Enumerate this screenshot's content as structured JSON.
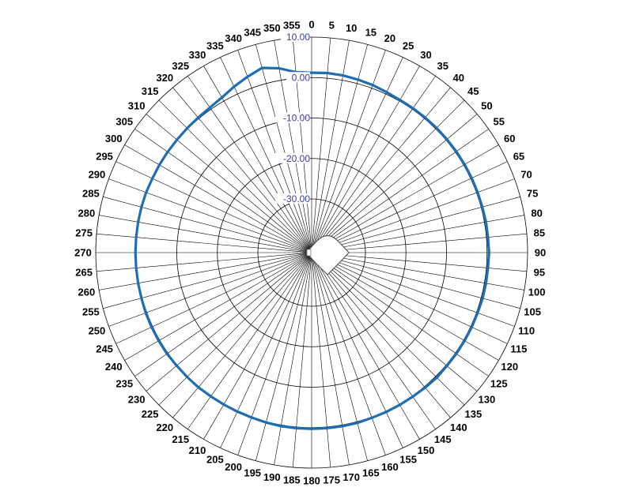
{
  "chart_data": {
    "type": "polar-line",
    "angle_labels": [
      "0",
      "5",
      "10",
      "15",
      "20",
      "25",
      "30",
      "35",
      "40",
      "45",
      "50",
      "55",
      "60",
      "65",
      "70",
      "75",
      "80",
      "85",
      "90",
      "95",
      "100",
      "105",
      "110",
      "115",
      "120",
      "125",
      "130",
      "135",
      "140",
      "145",
      "150",
      "155",
      "160",
      "165",
      "170",
      "175",
      "180",
      "185",
      "190",
      "195",
      "200",
      "205",
      "210",
      "215",
      "220",
      "225",
      "230",
      "235",
      "240",
      "245",
      "250",
      "255",
      "260",
      "265",
      "270",
      "275",
      "280",
      "285",
      "290",
      "295",
      "300",
      "305",
      "310",
      "315",
      "320",
      "325",
      "330",
      "335",
      "340",
      "345",
      "350",
      "355"
    ],
    "radial_axis": {
      "ticks": [
        "10.00",
        "0.00",
        "-10.00",
        "-20.00",
        "-30.00"
      ],
      "range": [
        -30,
        10
      ]
    },
    "series": [
      {
        "color": "#1f6eb4",
        "angles": [
          0,
          5,
          10,
          15,
          20,
          25,
          30,
          35,
          40,
          45,
          50,
          55,
          60,
          65,
          70,
          75,
          80,
          85,
          90,
          95,
          100,
          105,
          110,
          115,
          120,
          125,
          130,
          135,
          140,
          145,
          150,
          155,
          160,
          165,
          170,
          175,
          180,
          185,
          190,
          195,
          200,
          205,
          210,
          215,
          220,
          225,
          230,
          235,
          240,
          245,
          250,
          255,
          260,
          265,
          270,
          275,
          280,
          285,
          290,
          295,
          300,
          305,
          310,
          315,
          320,
          325,
          330,
          335,
          340,
          345,
          350,
          355
        ],
        "values": [
          1.2,
          1.3,
          1.2,
          1.0,
          0.8,
          0.5,
          0.3,
          0.3,
          0.3,
          0.3,
          0.3,
          0.3,
          0.3,
          0.3,
          0.3,
          0.3,
          0.4,
          0.4,
          0.5,
          0.4,
          0.4,
          0.4,
          0.3,
          0.3,
          0.3,
          0.3,
          0.3,
          0.4,
          0.3,
          0.2,
          0.2,
          0.2,
          0.2,
          0.3,
          0.3,
          0.3,
          0.3,
          0.3,
          0.3,
          0.2,
          0.1,
          0.1,
          0.1,
          0.1,
          0.2,
          0.2,
          0.2,
          0.3,
          0.3,
          0.3,
          0.3,
          0.2,
          0.2,
          0.2,
          0.2,
          0.2,
          0.2,
          0.2,
          0.2,
          0.1,
          0.1,
          0.1,
          0.1,
          0.2,
          0.3,
          0.5,
          1.0,
          2.0,
          3.0,
          4.0,
          3.0,
          1.5
        ]
      }
    ]
  }
}
